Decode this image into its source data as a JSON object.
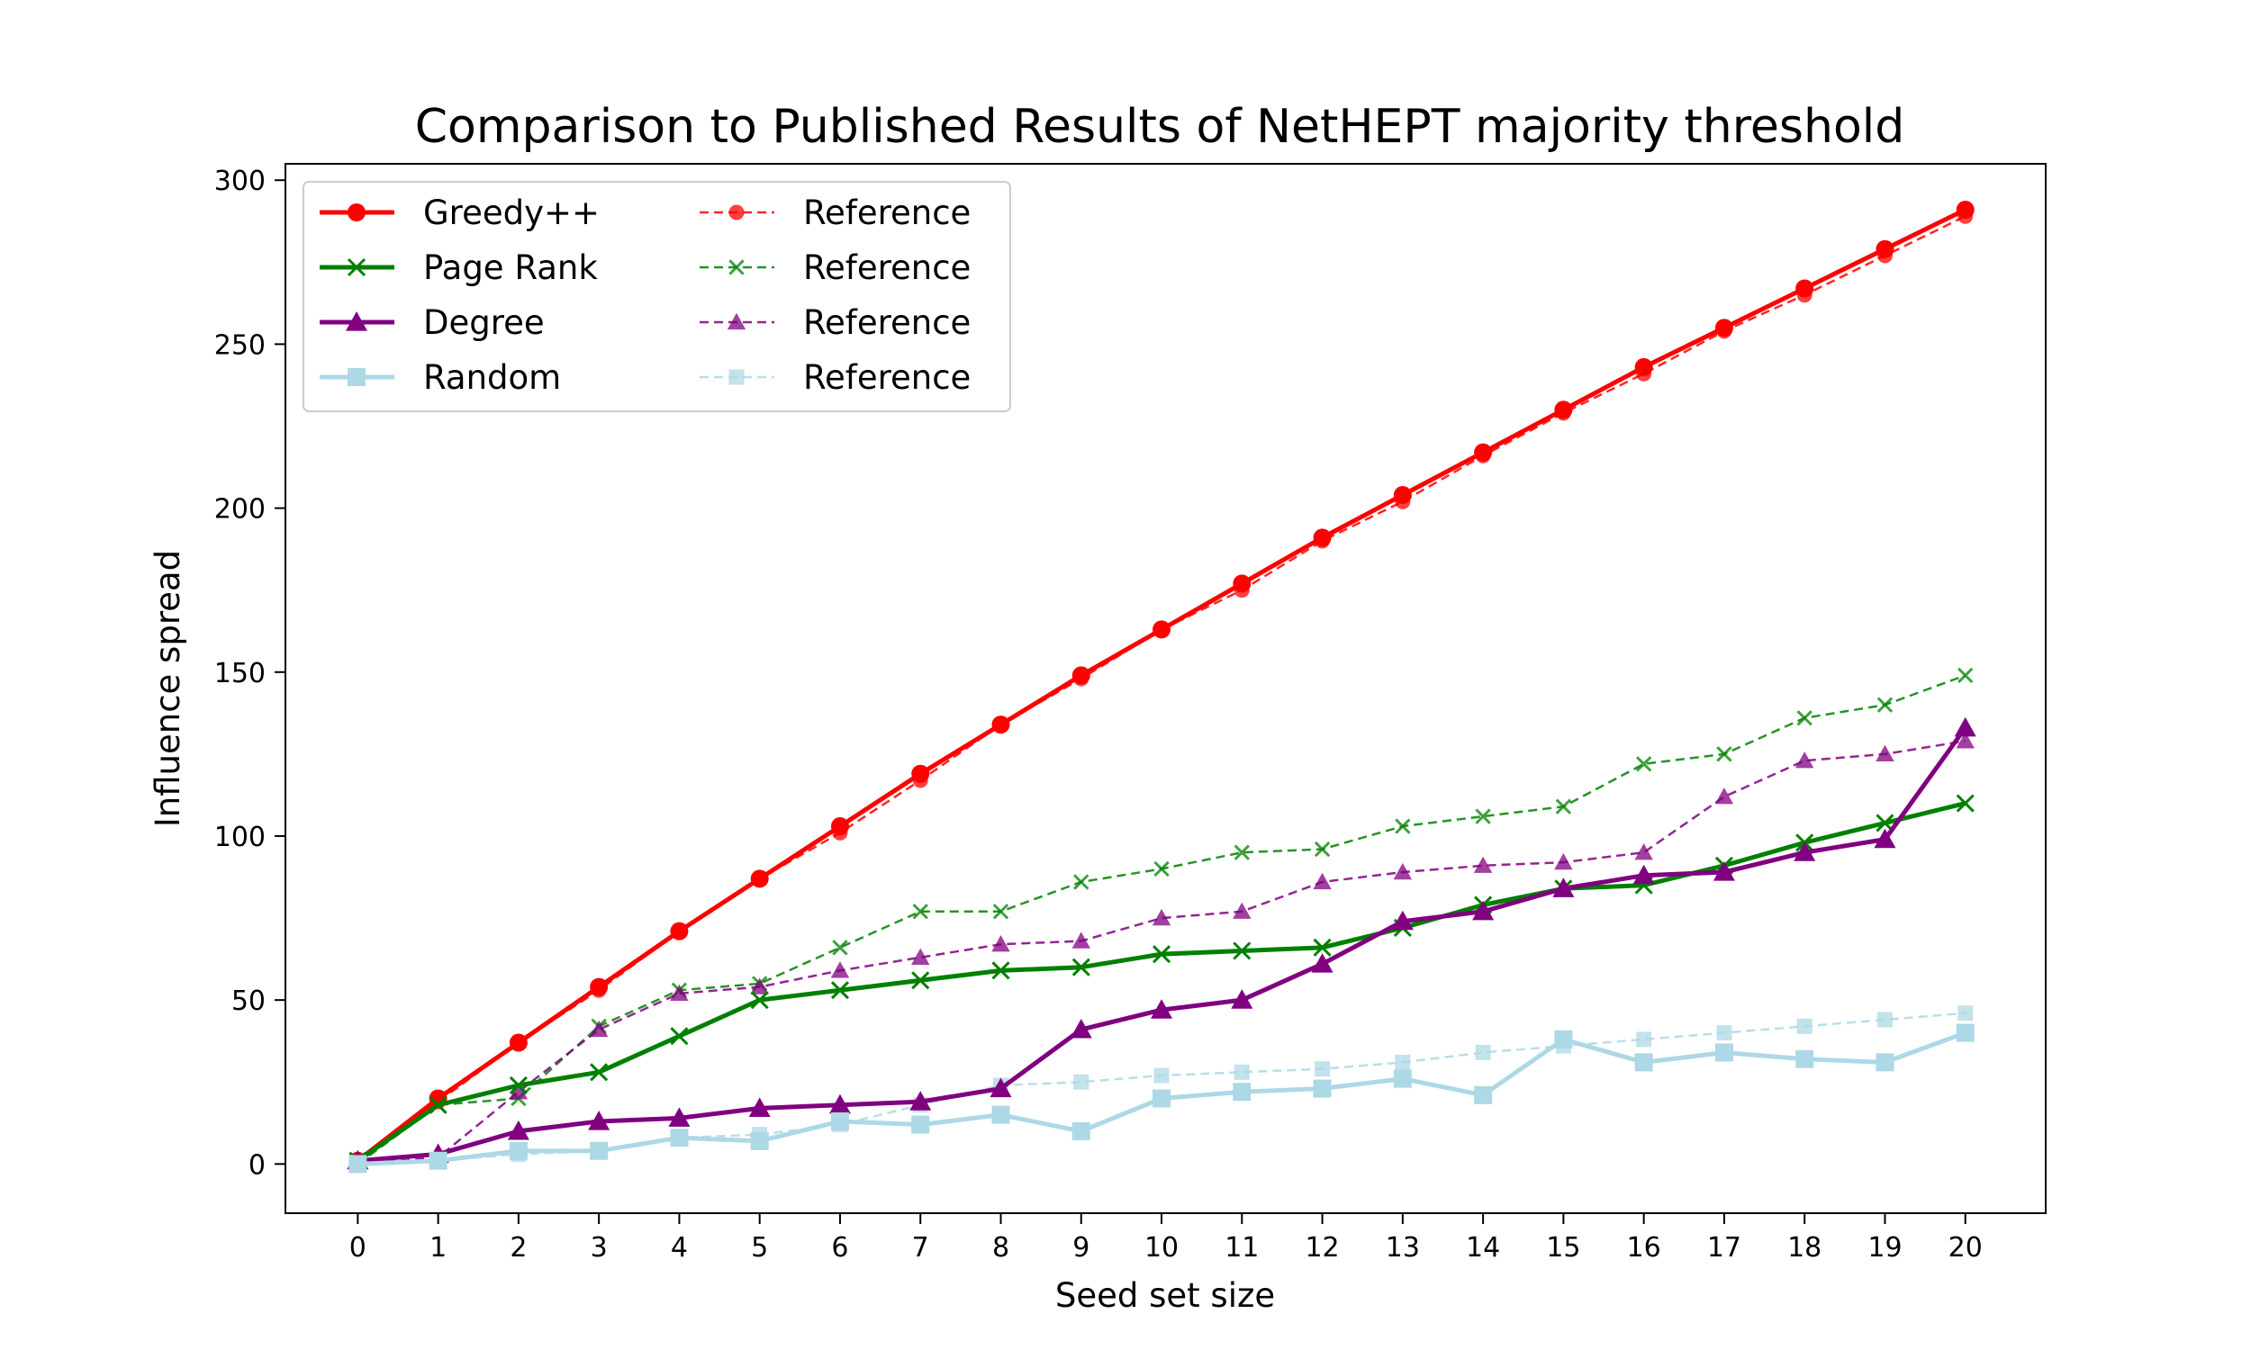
{
  "chart_data": {
    "type": "line",
    "title": "Comparison to Published Results of NetHEPT majority threshold",
    "xlabel": "Seed set size",
    "ylabel": "Influence spread",
    "xlim": [
      -0.9,
      21.0
    ],
    "ylim": [
      -15,
      305
    ],
    "xticks": [
      0,
      1,
      2,
      3,
      4,
      5,
      6,
      7,
      8,
      9,
      10,
      11,
      12,
      13,
      14,
      15,
      16,
      17,
      18,
      19,
      20
    ],
    "yticks": [
      0,
      50,
      100,
      150,
      200,
      250,
      300
    ],
    "grid": false,
    "legend_position": "top-left",
    "x": [
      0,
      1,
      2,
      3,
      4,
      5,
      6,
      7,
      8,
      9,
      10,
      11,
      12,
      13,
      14,
      15,
      16,
      17,
      18,
      19,
      20
    ],
    "series": [
      {
        "name": "Greedy++",
        "color": "#ff0000",
        "style": "solid",
        "marker": "circle",
        "values": [
          1,
          20,
          37,
          54,
          71,
          87,
          103,
          119,
          134,
          149,
          163,
          177,
          191,
          204,
          217,
          230,
          243,
          255,
          267,
          279,
          291
        ]
      },
      {
        "name": "Page Rank",
        "color": "#008000",
        "style": "solid",
        "marker": "x",
        "values": [
          1,
          18,
          24,
          28,
          39,
          50,
          53,
          56,
          59,
          60,
          64,
          65,
          66,
          72,
          79,
          84,
          85,
          91,
          98,
          104,
          110
        ]
      },
      {
        "name": "Degree",
        "color": "#800080",
        "style": "solid",
        "marker": "triangle",
        "values": [
          1,
          3,
          10,
          13,
          14,
          17,
          18,
          19,
          23,
          41,
          47,
          50,
          61,
          74,
          77,
          84,
          88,
          89,
          95,
          99,
          133
        ]
      },
      {
        "name": "Random",
        "color": "#add8e6",
        "style": "solid",
        "marker": "square",
        "values": [
          0,
          1,
          4,
          4,
          8,
          7,
          13,
          12,
          15,
          10,
          20,
          22,
          23,
          26,
          21,
          38,
          31,
          34,
          32,
          31,
          40
        ]
      },
      {
        "name": "Reference",
        "color": "#ff0000",
        "style": "dashed",
        "marker": "circle",
        "values": [
          1,
          19,
          37,
          53,
          71,
          87,
          101,
          117,
          134,
          148,
          163,
          175,
          190,
          202,
          216,
          229,
          241,
          254,
          265,
          277,
          289
        ]
      },
      {
        "name": "Reference",
        "color": "#008000",
        "style": "dashed",
        "marker": "x",
        "values": [
          0,
          18,
          20,
          42,
          53,
          55,
          66,
          77,
          77,
          86,
          90,
          95,
          96,
          103,
          106,
          109,
          122,
          125,
          136,
          140,
          149
        ]
      },
      {
        "name": "Reference",
        "color": "#800080",
        "style": "dashed",
        "marker": "triangle",
        "values": [
          0,
          2,
          22,
          41,
          52,
          54,
          59,
          63,
          67,
          68,
          75,
          77,
          86,
          89,
          91,
          92,
          95,
          112,
          123,
          125,
          129
        ]
      },
      {
        "name": "Reference",
        "color": "#add8e6",
        "style": "dashed",
        "marker": "square",
        "values": [
          0,
          1,
          3,
          4,
          8,
          9,
          12,
          18,
          24,
          25,
          27,
          28,
          29,
          31,
          34,
          36,
          38,
          40,
          42,
          44,
          46
        ]
      }
    ]
  }
}
